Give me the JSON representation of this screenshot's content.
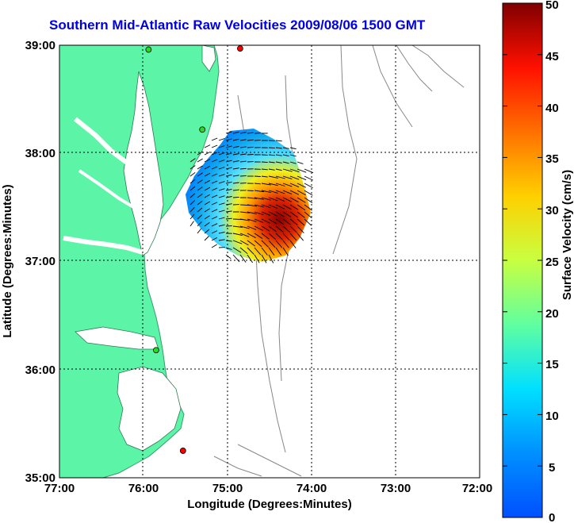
{
  "title": "Southern Mid-Atlantic Raw Velocities 2009/08/06 1500 GMT",
  "map": {
    "x_ticks": [
      "77:00",
      "76:00",
      "75:00",
      "74:00",
      "73:00",
      "72:00"
    ],
    "y_ticks": [
      "39:00",
      "38:00",
      "37:00",
      "36:00",
      "35:00"
    ],
    "xlabel": "Longitude (Degrees:Minutes)",
    "ylabel": "Latitude (Degrees:Minutes)",
    "lon_range": [
      -77,
      -72
    ],
    "lat_range": [
      35,
      39
    ],
    "land_color": "#5cf5a8",
    "ocean_color": "#ffffff",
    "bathymetry_color": "#888888",
    "stations": [
      {
        "lon": -74.85,
        "lat": 38.97,
        "status": "red"
      },
      {
        "lon": -75.94,
        "lat": 38.96,
        "status": "green"
      },
      {
        "lon": -75.3,
        "lat": 38.22,
        "status": "green"
      },
      {
        "lon": -75.85,
        "lat": 36.18,
        "status": "green"
      },
      {
        "lon": -75.53,
        "lat": 35.25,
        "status": "red"
      }
    ]
  },
  "colorbar": {
    "label": "Surface Velocity (cm/s)",
    "ticks": [
      "50",
      "45",
      "40",
      "35",
      "30",
      "25",
      "20",
      "15",
      "10",
      "5",
      "0"
    ],
    "min": 0,
    "max": 50,
    "colormap": "jet"
  }
}
